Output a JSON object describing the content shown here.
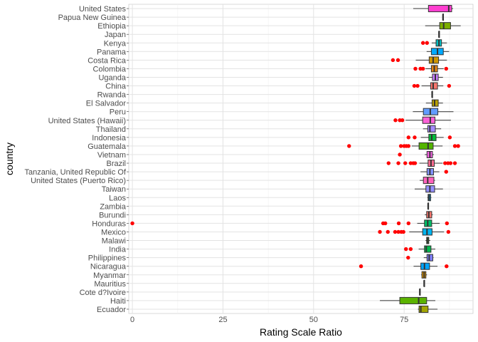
{
  "chart_data": {
    "type": "boxplot",
    "xlabel": "Rating Scale Ratio",
    "ylabel": "country",
    "xlim": [
      -1,
      94
    ],
    "x_ticks": [
      0,
      25,
      50,
      75
    ],
    "grid": true,
    "legend": "none",
    "outlier_color": "#FF0000",
    "categories": [
      "United States",
      "Papua New Guinea",
      "Ethiopia",
      "Japan",
      "Kenya",
      "Panama",
      "Costa Rica",
      "Colombia",
      "Uganda",
      "China",
      "Rwanda",
      "El Salvador",
      "Peru",
      "United States (Hawaii)",
      "Thailand",
      "Indonesia",
      "Guatemala",
      "Vietnam",
      "Brazil",
      "Tanzania, United Republic Of",
      "United States (Puerto Rico)",
      "Taiwan",
      "Laos",
      "Zambia",
      "Burundi",
      "Honduras",
      "Mexico",
      "Malawi",
      "India",
      "Philippines",
      "Nicaragua",
      "Myanmar",
      "Mauritius",
      "Cote d?Ivoire",
      "Haiti",
      "Ecuador"
    ],
    "boxes": [
      {
        "country": "United States",
        "color": "#FF3FD0",
        "whisker_low": 77.5,
        "q1": 81.7,
        "median": 87.3,
        "q3": 88.1,
        "whisker_high": 88.5,
        "outliers": []
      },
      {
        "country": "Papua New Guinea",
        "color": "#FF61C3",
        "whisker_low": 85.7,
        "q1": 85.7,
        "median": 85.7,
        "q3": 85.7,
        "whisker_high": 85.7,
        "outliers": []
      },
      {
        "country": "Ethiopia",
        "color": "#7CAE00",
        "whisker_low": 80.8,
        "q1": 84.8,
        "median": 85.9,
        "q3": 87.8,
        "whisker_high": 90.6,
        "outliers": []
      },
      {
        "country": "Japan",
        "color": "#00BF7D",
        "whisker_low": 84.6,
        "q1": 84.6,
        "median": 84.6,
        "q3": 84.6,
        "whisker_high": 84.6,
        "outliers": []
      },
      {
        "country": "Kenya",
        "color": "#00BFC4",
        "whisker_low": 82.6,
        "q1": 83.8,
        "median": 84.6,
        "q3": 85.3,
        "whisker_high": 86.8,
        "outliers": [
          80.2,
          81.3
        ]
      },
      {
        "country": "Panama",
        "color": "#00A9FF",
        "whisker_low": 81.2,
        "q1": 82.5,
        "median": 84.2,
        "q3": 85.8,
        "whisker_high": 87.4,
        "outliers": []
      },
      {
        "country": "Costa Rica",
        "color": "#CD9600",
        "whisker_low": 78.2,
        "q1": 81.9,
        "median": 83.0,
        "q3": 84.5,
        "whisker_high": 86.8,
        "outliers": [
          71.9,
          73.3
        ]
      },
      {
        "country": "Colombia",
        "color": "#E68613",
        "whisker_low": 80.9,
        "q1": 82.5,
        "median": 83.3,
        "q3": 84.2,
        "whisker_high": 85.9,
        "outliers": [
          78.1,
          79.5,
          80.2,
          86.6
        ]
      },
      {
        "country": "Uganda",
        "color": "#C77CFF",
        "whisker_low": 81.8,
        "q1": 82.8,
        "median": 83.6,
        "q3": 84.4,
        "whisker_high": 85.7,
        "outliers": []
      },
      {
        "country": "China",
        "color": "#F8766D",
        "whisker_low": 79.8,
        "q1": 82.3,
        "median": 83.0,
        "q3": 84.2,
        "whisker_high": 85.8,
        "outliers": [
          77.8,
          78.7,
          87.4
        ]
      },
      {
        "country": "Rwanda",
        "color": "#E58700",
        "whisker_low": 82.7,
        "q1": 82.7,
        "median": 82.7,
        "q3": 82.7,
        "whisker_high": 82.7,
        "outliers": []
      },
      {
        "country": "El Salvador",
        "color": "#B79F00",
        "whisker_low": 81.0,
        "q1": 82.7,
        "median": 83.4,
        "q3": 84.4,
        "whisker_high": 85.7,
        "outliers": []
      },
      {
        "country": "Peru",
        "color": "#619CFF",
        "whisker_low": 77.4,
        "q1": 80.3,
        "median": 82.2,
        "q3": 84.3,
        "whisker_high": 88.6,
        "outliers": []
      },
      {
        "country": "United States (Hawaii)",
        "color": "#FB61D7",
        "whisker_low": 75.4,
        "q1": 80.1,
        "median": 82.2,
        "q3": 83.5,
        "whisker_high": 87.9,
        "outliers": [
          72.6,
          73.8,
          74.5
        ]
      },
      {
        "country": "Thailand",
        "color": "#A58AFF",
        "whisker_low": 80.2,
        "q1": 81.5,
        "median": 82.1,
        "q3": 83.6,
        "whisker_high": 85.2,
        "outliers": []
      },
      {
        "country": "Indonesia",
        "color": "#00BA38",
        "whisker_low": 79.6,
        "q1": 81.8,
        "median": 82.6,
        "q3": 83.8,
        "whisker_high": 85.9,
        "outliers": [
          76.2,
          77.9,
          87.6
        ]
      },
      {
        "country": "Guatemala",
        "color": "#53B400",
        "whisker_low": 77.1,
        "q1": 79.1,
        "median": 81.6,
        "q3": 83.0,
        "whisker_high": 85.6,
        "outliers": [
          59.8,
          74.1,
          75.0,
          75.6,
          76.2,
          89.0,
          89.9
        ]
      },
      {
        "country": "Vietnam",
        "color": "#F564E3",
        "whisker_low": 80.7,
        "q1": 81.3,
        "median": 82.1,
        "q3": 82.8,
        "whisker_high": 83.2,
        "outliers": [
          73.8
        ]
      },
      {
        "country": "Brazil",
        "color": "#FF6C91",
        "whisker_low": 79.2,
        "q1": 81.6,
        "median": 82.4,
        "q3": 83.3,
        "whisker_high": 85.6,
        "outliers": [
          70.7,
          73.4,
          75.3,
          76.8,
          77.5,
          78.0,
          86.3,
          87.1,
          87.8,
          89.0
        ]
      },
      {
        "country": "Tanzania, United Republic Of",
        "color": "#8494FF",
        "whisker_low": 79.5,
        "q1": 81.3,
        "median": 82.1,
        "q3": 83.1,
        "whisker_high": 84.7,
        "outliers": [
          86.6
        ]
      },
      {
        "country": "United States (Puerto Rico)",
        "color": "#FF62BC",
        "whisker_low": 79.3,
        "q1": 80.3,
        "median": 81.5,
        "q3": 83.2,
        "whisker_high": 83.5,
        "outliers": []
      },
      {
        "country": "Taiwan",
        "color": "#9590FF",
        "whisker_low": 77.9,
        "q1": 81.0,
        "median": 82.1,
        "q3": 83.4,
        "whisker_high": 85.7,
        "outliers": []
      },
      {
        "country": "Laos",
        "color": "#00B0F6",
        "whisker_low": 81.4,
        "q1": 81.6,
        "median": 81.9,
        "q3": 82.3,
        "whisker_high": 82.5,
        "outliers": []
      },
      {
        "country": "Zambia",
        "color": "#00C19A",
        "whisker_low": 81.6,
        "q1": 81.6,
        "median": 81.6,
        "q3": 81.6,
        "whisker_high": 81.6,
        "outliers": []
      },
      {
        "country": "Burundi",
        "color": "#F8766D",
        "whisker_low": 80.7,
        "q1": 81.2,
        "median": 81.8,
        "q3": 82.6,
        "whisker_high": 82.9,
        "outliers": []
      },
      {
        "country": "Honduras",
        "color": "#00BE67",
        "whisker_low": 78.6,
        "q1": 80.6,
        "median": 81.5,
        "q3": 82.6,
        "whisker_high": 84.8,
        "outliers": [
          0.0,
          69.2,
          69.8,
          73.5,
          76.2,
          86.8
        ]
      },
      {
        "country": "Mexico",
        "color": "#00B4EF",
        "whisker_low": 76.4,
        "q1": 80.1,
        "median": 81.3,
        "q3": 82.7,
        "whisker_high": 86.0,
        "outliers": [
          68.3,
          70.5,
          72.5,
          73.4,
          74.2,
          74.8,
          87.2
        ]
      },
      {
        "country": "Malawi",
        "color": "#39B600",
        "whisker_low": 80.9,
        "q1": 81.2,
        "median": 81.5,
        "q3": 81.8,
        "whisker_high": 82.2,
        "outliers": []
      },
      {
        "country": "India",
        "color": "#00BB4E",
        "whisker_low": 79.0,
        "q1": 80.6,
        "median": 81.1,
        "q3": 82.4,
        "whisker_high": 83.6,
        "outliers": [
          75.5,
          76.8
        ]
      },
      {
        "country": "Philippines",
        "color": "#7F7FFF",
        "whisker_low": 80.4,
        "q1": 81.3,
        "median": 81.9,
        "q3": 82.9,
        "whisker_high": 83.1,
        "outliers": [
          76.1
        ]
      },
      {
        "country": "Nicaragua",
        "color": "#00A5FF",
        "whisker_low": 77.6,
        "q1": 79.6,
        "median": 80.6,
        "q3": 82.0,
        "whisker_high": 84.2,
        "outliers": [
          63.1,
          86.7
        ]
      },
      {
        "country": "Myanmar",
        "color": "#D89000",
        "whisker_low": 79.7,
        "q1": 79.9,
        "median": 80.5,
        "q3": 81.0,
        "whisker_high": 81.3,
        "outliers": []
      },
      {
        "country": "Mauritius",
        "color": "#E76BF3",
        "whisker_low": 80.5,
        "q1": 80.5,
        "median": 80.5,
        "q3": 80.5,
        "whisker_high": 80.5,
        "outliers": []
      },
      {
        "country": "Cote d?Ivoire",
        "color": "#00C0AF",
        "whisker_low": 79.3,
        "q1": 79.3,
        "median": 79.3,
        "q3": 79.3,
        "whisker_high": 79.3,
        "outliers": []
      },
      {
        "country": "Haiti",
        "color": "#5BB300",
        "whisker_low": 68.3,
        "q1": 73.8,
        "median": 79.0,
        "q3": 81.2,
        "whisker_high": 83.6,
        "outliers": []
      },
      {
        "country": "Ecuador",
        "color": "#A3A500",
        "whisker_low": 78.8,
        "q1": 79.1,
        "median": 79.6,
        "q3": 81.6,
        "whisker_high": 84.2,
        "outliers": []
      }
    ]
  }
}
